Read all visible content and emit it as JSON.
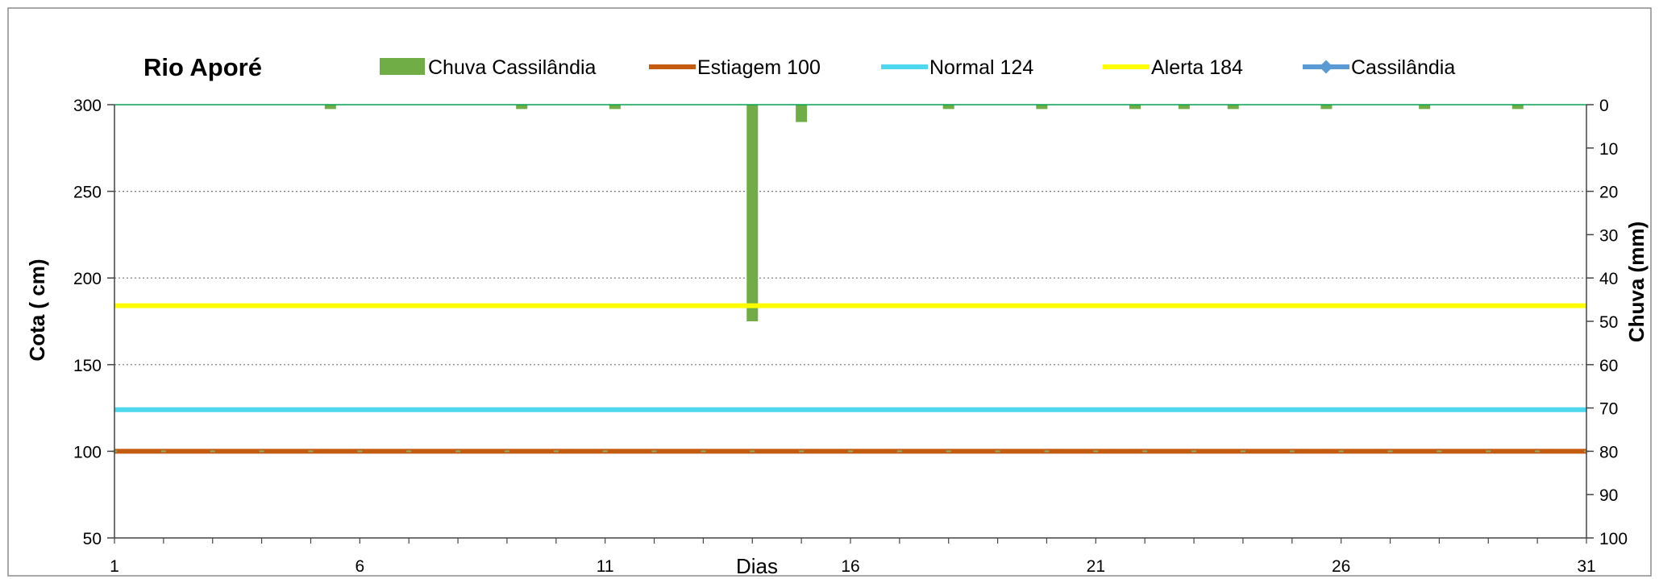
{
  "chart_data": {
    "type": "bar+line",
    "title": "Rio Aporé",
    "xlabel": "Dias",
    "ylabel_left": "Cota  ( cm)",
    "ylabel_right": "Chuva (mm)",
    "x_range": [
      1,
      31
    ],
    "x_ticks": [
      1,
      6,
      11,
      16,
      21,
      26,
      31
    ],
    "y_left_range": [
      50,
      300
    ],
    "y_left_ticks": [
      50,
      100,
      150,
      200,
      250,
      300
    ],
    "y_right_range": [
      0,
      100
    ],
    "y_right_inverted": true,
    "y_right_ticks": [
      0,
      10,
      20,
      30,
      40,
      50,
      60,
      70,
      80,
      90,
      100
    ],
    "grid": "horizontal dotted",
    "legend_position": "top",
    "legend": [
      {
        "label": "Chuva Cassilândia",
        "symbol": "bar",
        "color": "#70AD47"
      },
      {
        "label": "Estiagem 100",
        "symbol": "line",
        "color": "#C55A11"
      },
      {
        "label": "Normal  124",
        "symbol": "line",
        "color": "#4DD8EE"
      },
      {
        "label": "Alerta 184",
        "symbol": "line",
        "color": "#FFFF00"
      },
      {
        "label": "Cassilândia",
        "symbol": "line-marker",
        "color": "#5B9BD5"
      }
    ],
    "rain_series": {
      "name": "Chuva Cassilândia",
      "color": "#70AD47",
      "x": [
        5.4,
        9.3,
        11.2,
        14,
        15,
        18,
        19.9,
        21.8,
        22.8,
        23.8,
        25.7,
        27.7,
        29.6
      ],
      "values": [
        1,
        1,
        1,
        50,
        4,
        1,
        1,
        1,
        1,
        1,
        1,
        1,
        1
      ]
    },
    "reference_lines": [
      {
        "name": "Estiagem 100",
        "value": 100,
        "color": "#C55A11"
      },
      {
        "name": "Normal  124",
        "value": 124,
        "color": "#4DD8EE"
      },
      {
        "name": "Alerta 184",
        "value": 184,
        "color": "#FFFF00"
      }
    ]
  }
}
